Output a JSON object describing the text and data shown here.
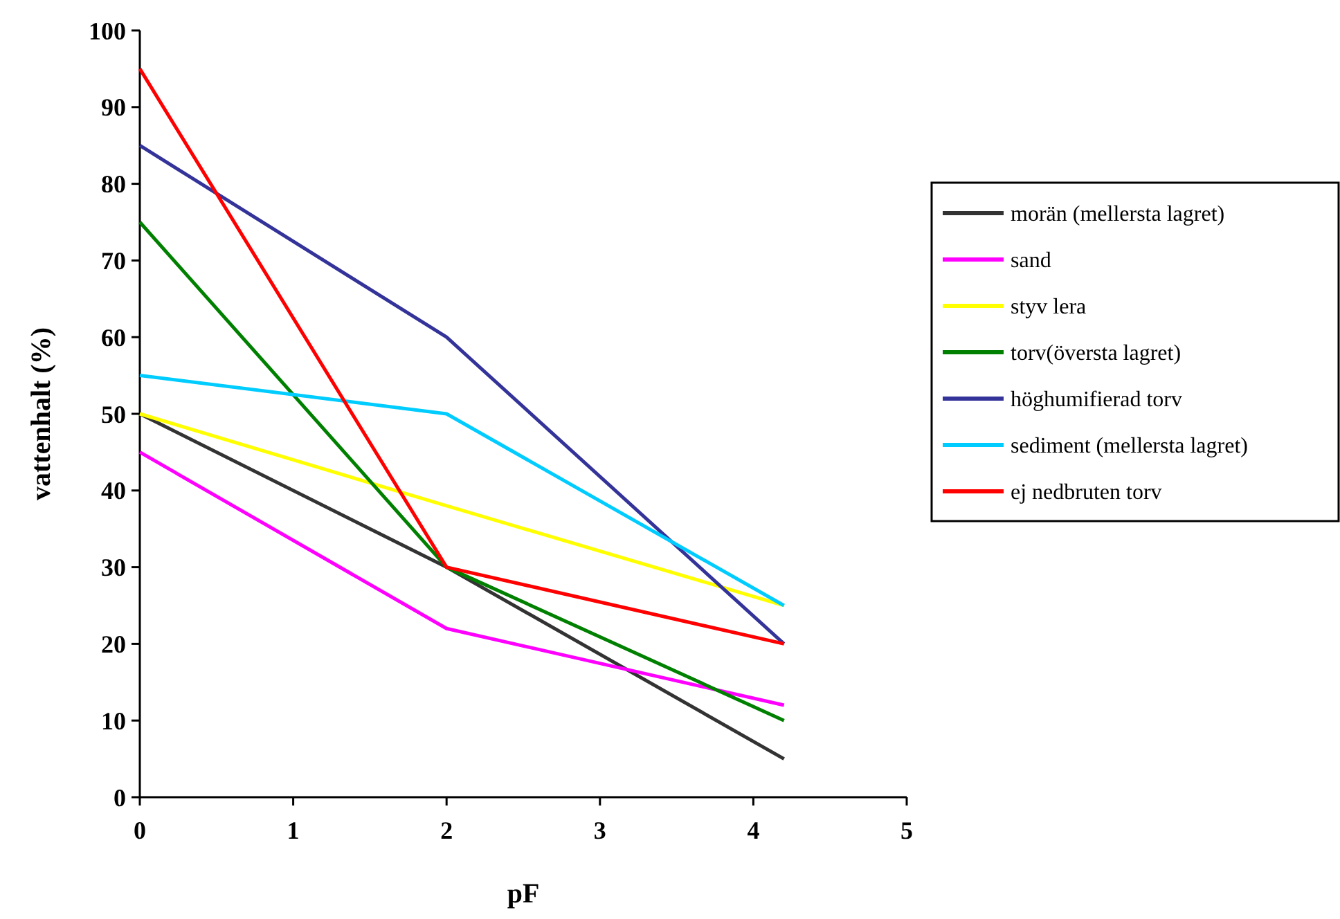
{
  "chart_data": {
    "type": "line",
    "xlabel": "pF",
    "ylabel": "vattenhalt (%)",
    "x": [
      0,
      2,
      4.2
    ],
    "xlim": [
      0,
      5
    ],
    "xticks": [
      0,
      1,
      2,
      3,
      4,
      5
    ],
    "ylim": [
      0,
      100
    ],
    "yticks": [
      0,
      10,
      20,
      30,
      40,
      50,
      60,
      70,
      80,
      90,
      100
    ],
    "grid": false,
    "legend": "right",
    "marker": "none",
    "line_style": "solid",
    "series": [
      {
        "name": "morän (mellersta lagret)",
        "color": "#333333",
        "values": [
          50,
          30,
          5
        ]
      },
      {
        "name": "sand",
        "color": "#ff00ff",
        "values": [
          45,
          22,
          12
        ]
      },
      {
        "name": "styv lera",
        "color": "#ffff00",
        "values": [
          50,
          38,
          25
        ]
      },
      {
        "name": "torv(översta lagret)",
        "color": "#008000",
        "values": [
          75,
          30,
          10
        ]
      },
      {
        "name": "höghumifierad torv",
        "color": "#333399",
        "values": [
          85,
          60,
          20
        ]
      },
      {
        "name": "sediment (mellersta lagret)",
        "color": "#00ccff",
        "values": [
          55,
          50,
          25
        ]
      },
      {
        "name": "ej nedbruten torv",
        "color": "#ff0000",
        "values": [
          95,
          30,
          20
        ]
      }
    ]
  }
}
